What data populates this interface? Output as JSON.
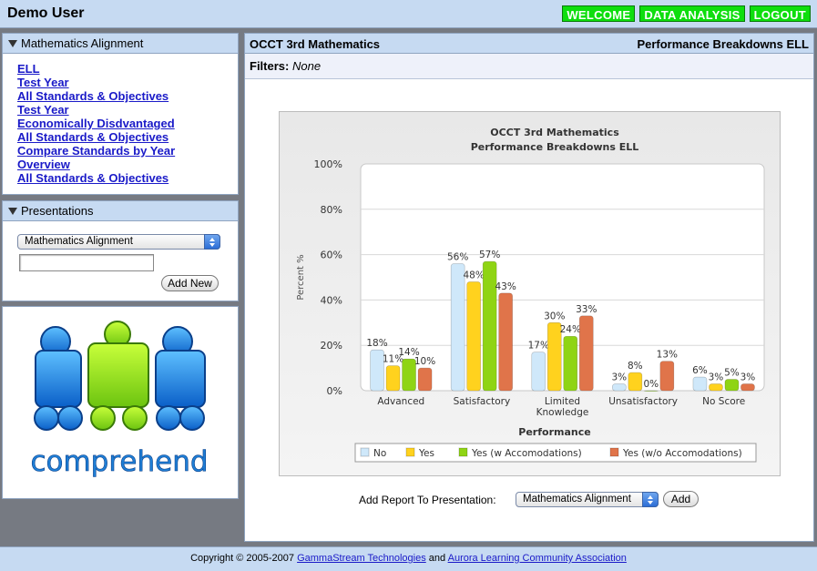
{
  "header": {
    "user_name": "Demo User",
    "nav": [
      "WELCOME",
      "DATA ANALYSIS",
      "LOGOUT"
    ]
  },
  "sidebar": {
    "alignment": {
      "title": "Mathematics Alignment",
      "links": [
        "ELL",
        "Test Year",
        "All Standards & Objectives",
        "Test Year",
        "Economically Disdvantaged",
        "All Standards & Objectives",
        "Compare Standards by Year",
        "Overview",
        "All Standards & Objectives"
      ]
    },
    "presentations": {
      "title": "Presentations",
      "select_value": "Mathematics Alignment",
      "name_value": "",
      "add_new_label": "Add New"
    },
    "logo_text": "comprehend"
  },
  "main": {
    "title_left": "OCCT 3rd Mathematics",
    "title_right": "Performance Breakdowns ELL",
    "filters_label": "Filters:",
    "filters_value": "None",
    "add_report_label": "Add Report To Presentation:",
    "add_report_select": "Mathematics Alignment",
    "add_button_label": "Add"
  },
  "chart_data": {
    "type": "bar",
    "title": "OCCT 3rd Mathematics",
    "subtitle": "Performance Breakdowns ELL",
    "xlabel": "Performance",
    "ylabel": "Percent %",
    "ylim": [
      0,
      100
    ],
    "yticks": [
      "0%",
      "20%",
      "40%",
      "60%",
      "80%",
      "100%"
    ],
    "categories": [
      [
        "Advanced"
      ],
      [
        "Satisfactory"
      ],
      [
        "Limited",
        "Knowledge"
      ],
      [
        "Unsatisfactory"
      ],
      [
        "No Score"
      ]
    ],
    "series": [
      {
        "name": "No",
        "color": "#cfe8fa",
        "values": [
          18,
          56,
          17,
          3,
          6
        ]
      },
      {
        "name": "Yes",
        "color": "#ffd21e",
        "values": [
          11,
          48,
          30,
          8,
          3
        ]
      },
      {
        "name": "Yes (w Accomodations)",
        "color": "#8fd414",
        "values": [
          14,
          57,
          24,
          0,
          5
        ]
      },
      {
        "name": "Yes (w/o Accomodations)",
        "color": "#e0744a",
        "values": [
          10,
          43,
          33,
          13,
          3
        ]
      }
    ],
    "grid": true,
    "legend": "bottom"
  },
  "footer": {
    "prefix": "Copyright © 2005-2007",
    "link1": "GammaStream Technologies",
    "middle": "and",
    "link2": "Aurora Learning Community Association"
  }
}
